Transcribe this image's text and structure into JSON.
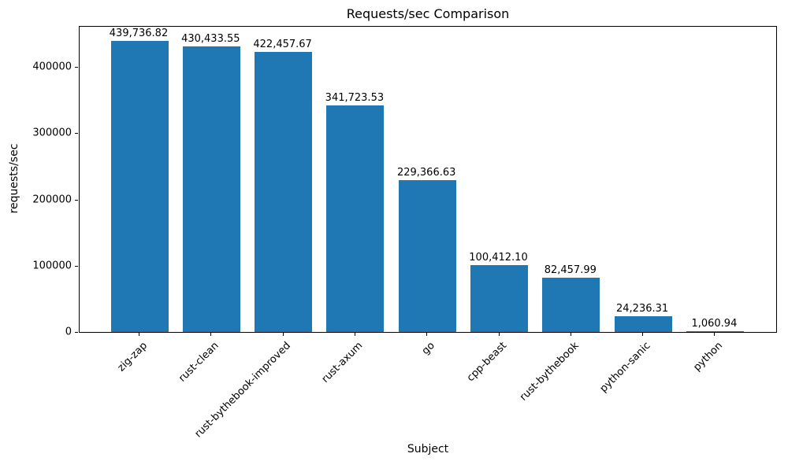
{
  "chart_data": {
    "type": "bar",
    "title": "Requests/sec Comparison",
    "xlabel": "Subject",
    "ylabel": "requests/sec",
    "categories": [
      "zig-zap",
      "rust-clean",
      "rust-bythebook-improved",
      "rust-axum",
      "go",
      "cpp-beast",
      "rust-bythebook",
      "python-sanic",
      "python"
    ],
    "values": [
      439736.82,
      430433.55,
      422457.67,
      341723.53,
      229366.63,
      100412.1,
      82457.99,
      24236.31,
      1060.94
    ],
    "value_labels": [
      "439,736.82",
      "430,433.55",
      "422,457.67",
      "341,723.53",
      "229,366.63",
      "100,412.10",
      "82,457.99",
      "24,236.31",
      "1,060.94"
    ],
    "ylim": [
      0,
      461724
    ],
    "yticks": [
      0,
      100000,
      200000,
      300000,
      400000
    ],
    "ytick_labels": [
      "0",
      "100000",
      "200000",
      "300000",
      "400000"
    ],
    "bar_color": "#1f77b4",
    "grid": false,
    "legend_position": "none"
  }
}
